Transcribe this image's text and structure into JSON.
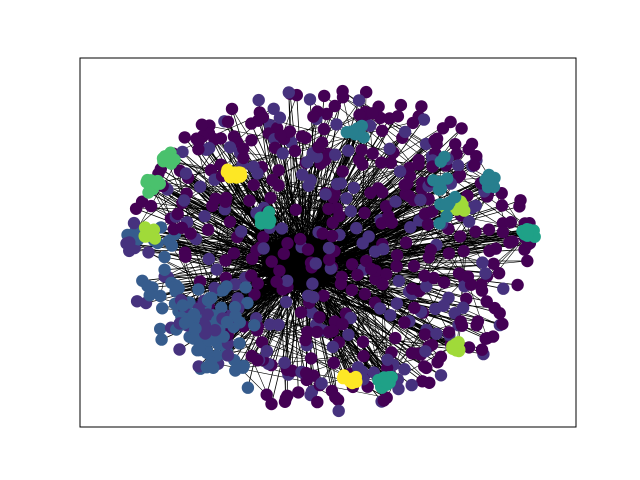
{
  "graph": {
    "type": "network",
    "layout": "spring",
    "edge_color": "#000000",
    "axes_frame": true,
    "ticks": false,
    "node_count_approx": 1000,
    "palette": "viridis",
    "community_colors": {
      "dark_purple": "#440154",
      "indigo": "#46327e",
      "slate_blue": "#365c8d",
      "teal": "#277f8e",
      "sea_green": "#1fa187",
      "green": "#4ac16d",
      "yellow_green": "#a0da39",
      "yellow": "#fde725"
    },
    "peripheral_clusters": [
      {
        "color": "green",
        "location": "upper-left"
      },
      {
        "color": "green",
        "location": "left"
      },
      {
        "color": "yellow_green",
        "location": "left"
      },
      {
        "color": "yellow",
        "location": "upper-left-inner"
      },
      {
        "color": "teal",
        "location": "top"
      },
      {
        "color": "teal",
        "location": "right"
      },
      {
        "color": "yellow_green",
        "location": "right-inner"
      },
      {
        "color": "sea_green",
        "location": "right"
      },
      {
        "color": "yellow_green",
        "location": "lower-right"
      },
      {
        "color": "sea_green",
        "location": "bottom"
      },
      {
        "color": "yellow",
        "location": "bottom"
      },
      {
        "color": "sea_green",
        "location": "inner-left"
      },
      {
        "color": "slate_blue",
        "location": "lower-left"
      }
    ]
  }
}
